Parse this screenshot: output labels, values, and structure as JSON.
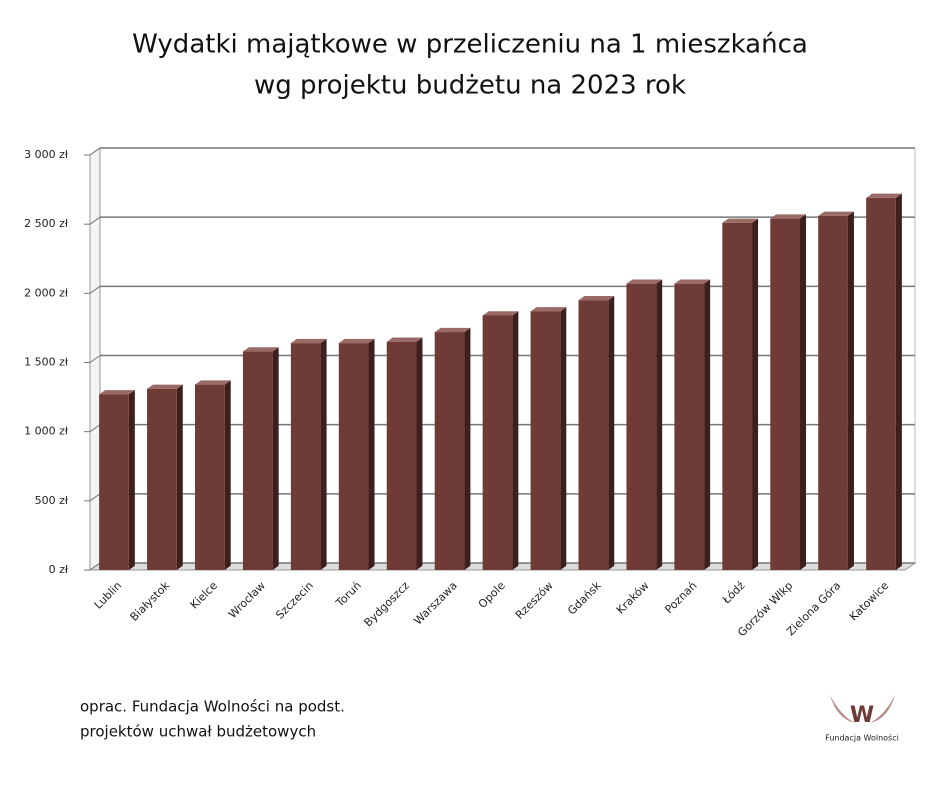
{
  "chart_data": {
    "type": "bar",
    "title": [
      "Wydatki majątkowe w przeliczeniu na 1 mieszkańca",
      "wg projektu budżetu na 2023 rok"
    ],
    "categories": [
      "Lublin",
      "Białystok",
      "Kielce",
      "Wrocław",
      "Szczecin",
      "Toruń",
      "Bydgoszcz",
      "Warszawa",
      "Opole",
      "Rzeszów",
      "Gdańsk",
      "Kraków",
      "Poznań",
      "Łódź",
      "Gorzów Wlkp",
      "Zielona Góra",
      "Katowice"
    ],
    "values": [
      1270,
      1310,
      1340,
      1580,
      1640,
      1640,
      1650,
      1720,
      1840,
      1870,
      1950,
      2070,
      2070,
      2510,
      2540,
      2560,
      2690
    ],
    "color": "#6e3b37",
    "ylim": [
      0,
      3000
    ],
    "yticks": [
      {
        "value": 0,
        "label": "0 zł"
      },
      {
        "value": 500,
        "label": "500 zł"
      },
      {
        "value": 1000,
        "label": "1 000 zł"
      },
      {
        "value": 1500,
        "label": "1 500 zł"
      },
      {
        "value": 2000,
        "label": "2 000 zł"
      },
      {
        "value": 2500,
        "label": "2 500 zł"
      },
      {
        "value": 3000,
        "label": "3 000 zł"
      }
    ],
    "grid": true,
    "note": [
      "oprac. Fundacja Wolności na podst.",
      "projektów uchwał budżetowych"
    ]
  },
  "logo": "Fundacja Wolności"
}
